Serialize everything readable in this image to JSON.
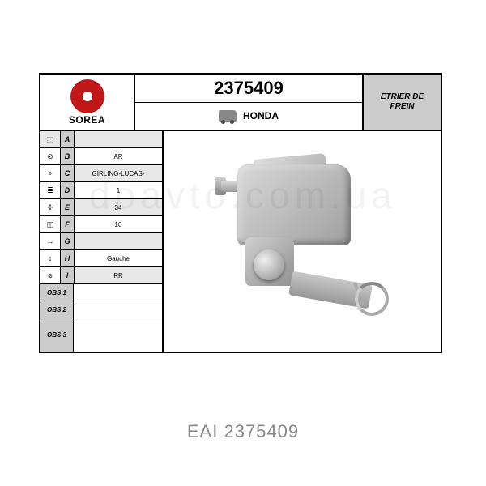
{
  "brand": {
    "name": "SOREA"
  },
  "header": {
    "part_number": "2375409",
    "make": "HONDA",
    "product_type_line1": "ETRIER DE",
    "product_type_line2": "FREIN"
  },
  "specs": {
    "rows": [
      {
        "letter": "A",
        "value": "",
        "gray": true
      },
      {
        "letter": "B",
        "value": "AR"
      },
      {
        "letter": "C",
        "value": "GIRLING-LUCAS-",
        "gray": true
      },
      {
        "letter": "D",
        "value": "1"
      },
      {
        "letter": "E",
        "value": "34",
        "gray": true
      },
      {
        "letter": "F",
        "value": "10"
      },
      {
        "letter": "G",
        "value": "",
        "gray": true
      },
      {
        "letter": "H",
        "value": "Gauche"
      },
      {
        "letter": "I",
        "value": "RR",
        "gray": true
      }
    ],
    "obs": [
      {
        "label": "OBS 1",
        "value": ""
      },
      {
        "label": "OBS 2",
        "value": ""
      },
      {
        "label": "OBS 3",
        "value": ""
      }
    ]
  },
  "caption": {
    "brand": "EAI",
    "code": "2375409"
  },
  "watermark": "doavto.com.ua",
  "colors": {
    "brand_red": "#c01818",
    "header_gray": "#cccccc",
    "row_gray": "#e8e8e8",
    "caption_gray": "#8a8a8a"
  }
}
